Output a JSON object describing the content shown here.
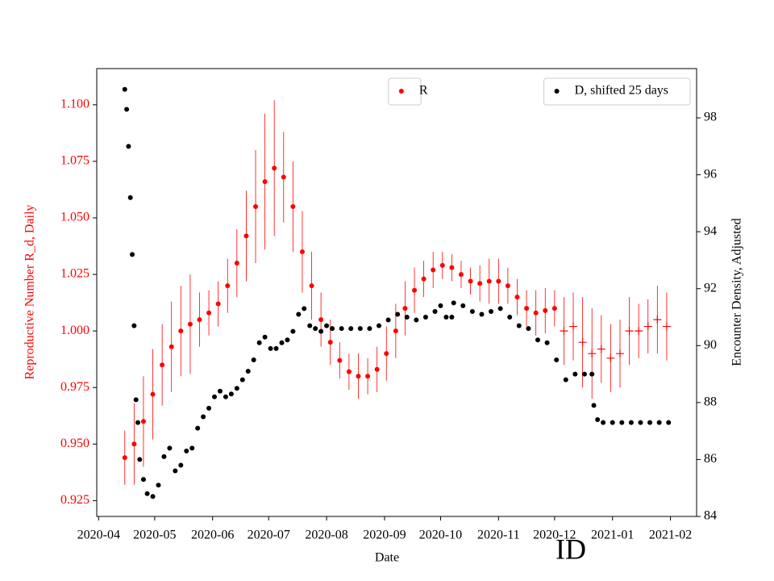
{
  "chart_data": {
    "type": "scatter",
    "xlabel": "Date",
    "ylabel": "Reproductive Number R_d, Daily",
    "y2label": "Encounter Density, Adjusted",
    "annotation": "ID",
    "xlim": [
      -1,
      320
    ],
    "xticks": [
      {
        "value": 0,
        "label": "2020-04"
      },
      {
        "value": 30,
        "label": "2020-05"
      },
      {
        "value": 61,
        "label": "2020-06"
      },
      {
        "value": 91,
        "label": "2020-07"
      },
      {
        "value": 122,
        "label": "2020-08"
      },
      {
        "value": 153,
        "label": "2020-09"
      },
      {
        "value": 183,
        "label": "2020-10"
      },
      {
        "value": 214,
        "label": "2020-11"
      },
      {
        "value": 244,
        "label": "2020-12"
      },
      {
        "value": 275,
        "label": "2021-01"
      },
      {
        "value": 306,
        "label": "2021-02"
      }
    ],
    "ylim": [
      0.918,
      1.116
    ],
    "yticks": [
      0.925,
      {
        "value": 0.95,
        "label": "0.950"
      },
      0.975,
      {
        "value": 1.0,
        "label": "1.000"
      },
      1.025,
      {
        "value": 1.05,
        "label": "1.050"
      },
      1.075,
      {
        "value": 1.1,
        "label": "1.100"
      }
    ],
    "ycolor": "red",
    "y2lim": [
      84,
      99.73
    ],
    "y2ticks": [
      84,
      86,
      88,
      90,
      92,
      94,
      96,
      98
    ],
    "series": [
      {
        "name": "R",
        "color": "red",
        "marker": "o",
        "axis": "y",
        "legend": "upper center",
        "x": [
          14,
          19,
          24,
          29,
          34,
          39,
          44,
          49,
          54,
          59,
          64,
          69,
          74,
          79,
          84,
          89,
          94,
          99,
          104,
          109,
          114,
          119,
          124,
          129,
          134,
          139,
          144,
          149,
          154,
          159,
          164,
          169,
          174,
          179,
          184,
          189,
          194,
          199,
          204,
          209,
          214,
          219,
          224,
          229,
          234,
          239,
          244
        ],
        "values": [
          0.944,
          0.95,
          0.96,
          0.972,
          0.985,
          0.993,
          1.0,
          1.003,
          1.005,
          1.008,
          1.012,
          1.02,
          1.03,
          1.042,
          1.055,
          1.066,
          1.072,
          1.068,
          1.055,
          1.035,
          1.02,
          1.005,
          0.995,
          0.987,
          0.982,
          0.98,
          0.98,
          0.983,
          0.99,
          1.0,
          1.01,
          1.018,
          1.023,
          1.027,
          1.029,
          1.028,
          1.025,
          1.022,
          1.021,
          1.022,
          1.022,
          1.02,
          1.015,
          1.01,
          1.008,
          1.009,
          1.01
        ],
        "errors": [
          0.012,
          0.018,
          0.02,
          0.02,
          0.018,
          0.02,
          0.02,
          0.022,
          0.012,
          0.01,
          0.01,
          0.012,
          0.015,
          0.02,
          0.025,
          0.03,
          0.03,
          0.02,
          0.02,
          0.018,
          0.015,
          0.012,
          0.01,
          0.008,
          0.008,
          0.01,
          0.008,
          0.01,
          0.012,
          0.012,
          0.012,
          0.01,
          0.008,
          0.008,
          0.006,
          0.006,
          0.006,
          0.006,
          0.008,
          0.01,
          0.01,
          0.008,
          0.008,
          0.008,
          0.01,
          0.01,
          0.008
        ]
      },
      {
        "color": "red",
        "marker": "+",
        "axis": "y",
        "x": [
          249,
          254,
          259,
          264,
          269,
          274,
          279,
          284,
          289,
          294,
          299,
          304
        ],
        "values": [
          1.0,
          1.002,
          0.995,
          0.99,
          0.992,
          0.988,
          0.99,
          1.0,
          1.0,
          1.002,
          1.005,
          1.002
        ],
        "errors": [
          0.015,
          0.015,
          0.02,
          0.02,
          0.015,
          0.015,
          0.015,
          0.015,
          0.012,
          0.012,
          0.015,
          0.015
        ]
      },
      {
        "name": "D, shifted 25 days",
        "color": "black",
        "marker": "o",
        "axis": "y2",
        "legend": "upper right",
        "x": [
          14,
          15,
          16,
          17,
          18,
          19,
          20,
          21,
          22,
          24,
          26,
          29,
          32,
          35,
          38,
          41,
          44,
          47,
          50,
          53,
          56,
          59,
          62,
          65,
          68,
          71,
          74,
          77,
          80,
          83,
          86,
          89,
          92,
          95,
          98,
          101,
          104,
          107,
          110,
          113,
          116,
          119,
          122,
          125,
          130,
          135,
          140,
          145,
          150,
          155,
          160,
          165,
          170,
          175,
          180,
          183,
          186,
          189,
          190,
          195,
          200,
          205,
          210,
          215,
          220,
          225,
          230,
          235,
          240,
          245,
          250,
          255,
          260,
          264,
          265,
          267,
          270,
          275,
          280,
          285,
          290,
          295,
          300,
          305
        ],
        "values": [
          99.0,
          98.3,
          97.0,
          95.2,
          93.2,
          90.7,
          88.1,
          87.3,
          86.0,
          85.3,
          84.8,
          84.7,
          85.1,
          86.1,
          86.4,
          85.6,
          85.8,
          86.3,
          86.4,
          87.1,
          87.5,
          87.8,
          88.2,
          88.4,
          88.2,
          88.3,
          88.5,
          88.8,
          89.1,
          89.5,
          90.1,
          90.3,
          89.9,
          89.9,
          90.1,
          90.2,
          90.5,
          91.1,
          91.3,
          90.7,
          90.6,
          90.5,
          90.7,
          90.6,
          90.6,
          90.6,
          90.6,
          90.6,
          90.7,
          90.9,
          91.1,
          91.0,
          90.9,
          91.0,
          91.2,
          91.4,
          91.0,
          91.0,
          91.5,
          91.4,
          91.2,
          91.1,
          91.2,
          91.3,
          91.0,
          90.7,
          90.6,
          90.2,
          90.1,
          89.5,
          88.8,
          89.0,
          89.0,
          89.0,
          87.9,
          87.4,
          87.3,
          87.3,
          87.3,
          87.3,
          87.3,
          87.3,
          87.3,
          87.3
        ]
      }
    ]
  }
}
